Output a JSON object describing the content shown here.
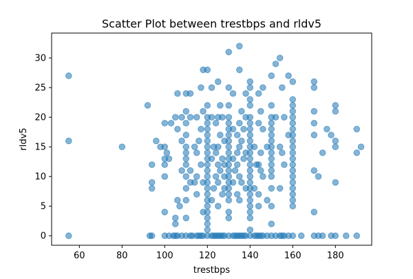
{
  "chart_data": {
    "type": "scatter",
    "title": "Scatter Plot between trestbps and rldv5",
    "xlabel": "trestbps",
    "ylabel": "rldv5",
    "xlim": [
      47,
      197
    ],
    "ylim": [
      -1.6,
      34.2
    ],
    "x_ticks": [
      60,
      80,
      100,
      120,
      140,
      160,
      180
    ],
    "y_ticks": [
      0,
      5,
      10,
      15,
      20,
      25,
      30
    ],
    "grid": false,
    "legend": "none",
    "marker_color": "#1f77b4",
    "marker_alpha": 0.55,
    "series": [
      {
        "name": "",
        "points": [
          [
            55,
            0
          ],
          [
            55,
            16
          ],
          [
            55,
            27
          ],
          [
            80,
            15
          ],
          [
            92,
            22
          ],
          [
            93,
            0
          ],
          [
            94,
            0
          ],
          [
            94,
            12
          ],
          [
            94,
            9
          ],
          [
            94,
            8
          ],
          [
            96,
            16
          ],
          [
            98,
            15
          ],
          [
            100,
            0
          ],
          [
            100,
            15
          ],
          [
            100,
            13
          ],
          [
            100,
            12
          ],
          [
            100,
            10
          ],
          [
            100,
            4
          ],
          [
            100,
            19
          ],
          [
            101,
            14
          ],
          [
            102,
            0
          ],
          [
            102,
            13
          ],
          [
            103,
            19
          ],
          [
            104,
            0
          ],
          [
            105,
            0
          ],
          [
            105,
            20
          ],
          [
            105,
            3
          ],
          [
            105,
            2
          ],
          [
            106,
            24
          ],
          [
            106,
            6
          ],
          [
            106,
            0
          ],
          [
            106,
            18
          ],
          [
            107,
            5
          ],
          [
            108,
            0
          ],
          [
            108,
            20
          ],
          [
            108,
            16
          ],
          [
            108,
            11
          ],
          [
            110,
            0
          ],
          [
            110,
            24
          ],
          [
            110,
            21
          ],
          [
            110,
            19
          ],
          [
            110,
            17
          ],
          [
            110,
            15
          ],
          [
            110,
            14
          ],
          [
            110,
            13
          ],
          [
            110,
            12
          ],
          [
            110,
            10
          ],
          [
            110,
            8
          ],
          [
            110,
            6
          ],
          [
            110,
            3
          ],
          [
            112,
            0
          ],
          [
            112,
            24
          ],
          [
            112,
            20
          ],
          [
            112,
            11
          ],
          [
            112,
            9
          ],
          [
            113,
            0
          ],
          [
            114,
            9
          ],
          [
            114,
            15
          ],
          [
            115,
            0
          ],
          [
            115,
            20
          ],
          [
            115,
            14
          ],
          [
            115,
            10
          ],
          [
            115,
            7
          ],
          [
            116,
            0
          ],
          [
            116,
            16
          ],
          [
            117,
            0
          ],
          [
            117,
            12
          ],
          [
            117,
            25
          ],
          [
            117,
            18
          ],
          [
            118,
            0
          ],
          [
            118,
            28
          ],
          [
            118,
            21
          ],
          [
            118,
            9
          ],
          [
            118,
            4
          ],
          [
            120,
            0
          ],
          [
            120,
            28
          ],
          [
            120,
            22
          ],
          [
            120,
            20
          ],
          [
            120,
            19
          ],
          [
            120,
            18
          ],
          [
            120,
            17
          ],
          [
            120,
            16
          ],
          [
            120,
            15
          ],
          [
            120,
            14
          ],
          [
            120,
            13
          ],
          [
            120,
            12
          ],
          [
            120,
            11
          ],
          [
            120,
            10
          ],
          [
            120,
            9
          ],
          [
            120,
            8
          ],
          [
            120,
            7
          ],
          [
            120,
            6
          ],
          [
            120,
            5
          ],
          [
            120,
            4
          ],
          [
            120,
            3
          ],
          [
            120,
            2
          ],
          [
            120,
            1
          ],
          [
            122,
            0
          ],
          [
            122,
            25
          ],
          [
            122,
            20
          ],
          [
            122,
            13
          ],
          [
            122,
            6
          ],
          [
            123,
            0
          ],
          [
            123,
            8
          ],
          [
            123,
            15
          ],
          [
            124,
            0
          ],
          [
            124,
            19
          ],
          [
            124,
            14
          ],
          [
            124,
            10
          ],
          [
            125,
            0
          ],
          [
            125,
            26
          ],
          [
            125,
            20
          ],
          [
            125,
            15
          ],
          [
            125,
            12
          ],
          [
            125,
            9
          ],
          [
            125,
            5
          ],
          [
            126,
            0
          ],
          [
            126,
            22
          ],
          [
            126,
            17
          ],
          [
            126,
            11
          ],
          [
            127,
            0
          ],
          [
            127,
            20
          ],
          [
            127,
            13
          ],
          [
            127,
            7
          ],
          [
            128,
            0
          ],
          [
            128,
            16
          ],
          [
            128,
            12
          ],
          [
            128,
            10
          ],
          [
            128,
            8
          ],
          [
            130,
            0
          ],
          [
            130,
            31
          ],
          [
            130,
            25
          ],
          [
            130,
            22
          ],
          [
            130,
            20
          ],
          [
            130,
            19
          ],
          [
            130,
            18
          ],
          [
            130,
            17
          ],
          [
            130,
            16
          ],
          [
            130,
            15
          ],
          [
            130,
            14
          ],
          [
            130,
            13
          ],
          [
            130,
            12
          ],
          [
            130,
            11
          ],
          [
            130,
            10
          ],
          [
            130,
            9
          ],
          [
            130,
            8
          ],
          [
            130,
            7
          ],
          [
            130,
            6
          ],
          [
            130,
            4
          ],
          [
            130,
            3
          ],
          [
            132,
            0
          ],
          [
            132,
            24
          ],
          [
            132,
            18
          ],
          [
            132,
            13
          ],
          [
            132,
            9
          ],
          [
            133,
            0
          ],
          [
            133,
            11
          ],
          [
            134,
            0
          ],
          [
            134,
            17
          ],
          [
            134,
            14
          ],
          [
            134,
            7
          ],
          [
            134,
            12
          ],
          [
            135,
            0
          ],
          [
            135,
            32
          ],
          [
            135,
            28
          ],
          [
            135,
            19
          ],
          [
            135,
            15
          ],
          [
            135,
            10
          ],
          [
            135,
            6
          ],
          [
            136,
            0
          ],
          [
            136,
            21
          ],
          [
            136,
            16
          ],
          [
            136,
            9
          ],
          [
            137,
            0
          ],
          [
            137,
            13
          ],
          [
            137,
            18
          ],
          [
            138,
            0
          ],
          [
            138,
            24
          ],
          [
            138,
            20
          ],
          [
            138,
            14
          ],
          [
            138,
            8
          ],
          [
            140,
            0
          ],
          [
            140,
            26
          ],
          [
            140,
            25
          ],
          [
            140,
            23
          ],
          [
            140,
            22
          ],
          [
            140,
            20
          ],
          [
            140,
            19
          ],
          [
            140,
            18
          ],
          [
            140,
            17
          ],
          [
            140,
            16
          ],
          [
            140,
            15
          ],
          [
            140,
            14
          ],
          [
            140,
            13
          ],
          [
            140,
            12
          ],
          [
            140,
            11
          ],
          [
            140,
            10
          ],
          [
            140,
            9
          ],
          [
            140,
            8
          ],
          [
            140,
            7
          ],
          [
            140,
            6
          ],
          [
            140,
            5
          ],
          [
            140,
            4
          ],
          [
            140,
            3
          ],
          [
            140,
            1
          ],
          [
            142,
            0
          ],
          [
            142,
            15
          ],
          [
            142,
            8
          ],
          [
            143,
            12
          ],
          [
            143,
            0
          ],
          [
            144,
            0
          ],
          [
            144,
            24
          ],
          [
            144,
            19
          ],
          [
            144,
            12
          ],
          [
            144,
            7
          ],
          [
            144,
            5
          ],
          [
            145,
            0
          ],
          [
            145,
            21
          ],
          [
            145,
            14
          ],
          [
            145,
            11
          ],
          [
            146,
            0
          ],
          [
            146,
            25
          ],
          [
            146,
            18
          ],
          [
            146,
            10
          ],
          [
            148,
            0
          ],
          [
            148,
            15
          ],
          [
            148,
            6
          ],
          [
            150,
            0
          ],
          [
            150,
            27
          ],
          [
            150,
            22
          ],
          [
            150,
            20
          ],
          [
            150,
            19
          ],
          [
            150,
            18
          ],
          [
            150,
            17
          ],
          [
            150,
            16
          ],
          [
            150,
            15
          ],
          [
            150,
            14
          ],
          [
            150,
            13
          ],
          [
            150,
            12
          ],
          [
            150,
            11
          ],
          [
            150,
            10
          ],
          [
            150,
            8
          ],
          [
            150,
            5
          ],
          [
            150,
            2
          ],
          [
            152,
            0
          ],
          [
            152,
            29
          ],
          [
            152,
            20
          ],
          [
            154,
            0
          ],
          [
            154,
            30
          ],
          [
            154,
            15
          ],
          [
            154,
            8
          ],
          [
            155,
            0
          ],
          [
            155,
            25
          ],
          [
            155,
            14
          ],
          [
            156,
            0
          ],
          [
            156,
            20
          ],
          [
            156,
            12
          ],
          [
            158,
            0
          ],
          [
            158,
            27
          ],
          [
            158,
            17
          ],
          [
            160,
            0
          ],
          [
            160,
            26
          ],
          [
            160,
            23
          ],
          [
            160,
            22
          ],
          [
            160,
            21
          ],
          [
            160,
            20
          ],
          [
            160,
            19
          ],
          [
            160,
            18
          ],
          [
            160,
            17
          ],
          [
            160,
            16
          ],
          [
            160,
            15
          ],
          [
            160,
            14
          ],
          [
            160,
            13
          ],
          [
            160,
            12
          ],
          [
            160,
            11
          ],
          [
            160,
            10
          ],
          [
            160,
            9
          ],
          [
            160,
            8
          ],
          [
            160,
            7
          ],
          [
            160,
            6
          ],
          [
            160,
            5
          ],
          [
            164,
            0
          ],
          [
            170,
            0
          ],
          [
            170,
            26
          ],
          [
            170,
            25
          ],
          [
            170,
            21
          ],
          [
            170,
            19
          ],
          [
            170,
            17
          ],
          [
            170,
            11
          ],
          [
            170,
            4
          ],
          [
            172,
            0
          ],
          [
            172,
            10
          ],
          [
            174,
            0
          ],
          [
            174,
            14
          ],
          [
            176,
            18
          ],
          [
            178,
            0
          ],
          [
            178,
            17
          ],
          [
            180,
            0
          ],
          [
            180,
            22
          ],
          [
            180,
            21
          ],
          [
            180,
            16
          ],
          [
            180,
            15
          ],
          [
            180,
            9
          ],
          [
            185,
            0
          ],
          [
            190,
            0
          ],
          [
            190,
            18
          ],
          [
            190,
            14
          ],
          [
            192,
            15
          ]
        ]
      }
    ]
  }
}
